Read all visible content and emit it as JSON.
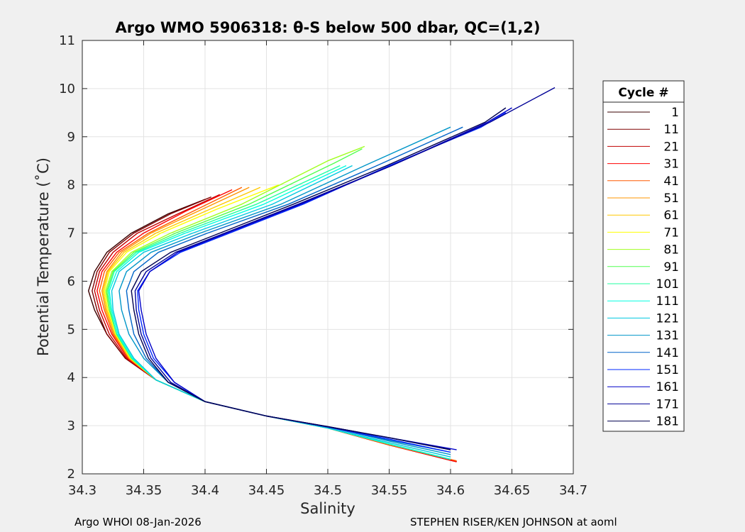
{
  "chart_data": {
    "type": "line",
    "title": "Argo WMO 5906318: θ-S below 500 dbar,  QC=(1,2)",
    "xlabel": "Salinity",
    "ylabel": "Potential Temperature (˚C)",
    "xlim": [
      34.3,
      34.7
    ],
    "ylim": [
      2,
      11
    ],
    "xticks": [
      "34.3",
      "34.35",
      "34.4",
      "34.45",
      "34.5",
      "34.55",
      "34.6",
      "34.65",
      "34.7"
    ],
    "yticks": [
      "2",
      "3",
      "4",
      "5",
      "6",
      "7",
      "8",
      "9",
      "10",
      "11"
    ],
    "grid": true,
    "legend_title": "Cycle #",
    "legend_position": "right",
    "series": [
      {
        "name": "1",
        "color": "#3a0000",
        "x": [
          34.605,
          34.55,
          34.5,
          34.45,
          34.4,
          34.36,
          34.335,
          34.32,
          34.31,
          34.305,
          34.31,
          34.32,
          34.34,
          34.37,
          34.4
        ],
        "y": [
          2.25,
          2.6,
          2.95,
          3.2,
          3.5,
          3.95,
          4.4,
          4.9,
          5.4,
          5.8,
          6.2,
          6.6,
          7.0,
          7.4,
          7.7
        ]
      },
      {
        "name": "11",
        "color": "#800000",
        "x": [
          34.605,
          34.55,
          34.5,
          34.45,
          34.4,
          34.36,
          34.335,
          34.32,
          34.312,
          34.308,
          34.312,
          34.322,
          34.342,
          34.372,
          34.405
        ],
        "y": [
          2.25,
          2.6,
          2.95,
          3.2,
          3.5,
          3.95,
          4.4,
          4.9,
          5.4,
          5.8,
          6.2,
          6.6,
          7.0,
          7.4,
          7.75
        ]
      },
      {
        "name": "21",
        "color": "#c00000",
        "x": [
          34.605,
          34.55,
          34.5,
          34.45,
          34.4,
          34.36,
          34.336,
          34.322,
          34.314,
          34.31,
          34.314,
          34.325,
          34.345,
          34.378,
          34.412
        ],
        "y": [
          2.25,
          2.6,
          2.95,
          3.2,
          3.5,
          3.95,
          4.4,
          4.9,
          5.4,
          5.8,
          6.2,
          6.6,
          7.0,
          7.4,
          7.8
        ]
      },
      {
        "name": "31",
        "color": "#ff0000",
        "x": [
          34.605,
          34.55,
          34.5,
          34.45,
          34.4,
          34.36,
          34.337,
          34.324,
          34.316,
          34.312,
          34.316,
          34.328,
          34.35,
          34.384,
          34.422
        ],
        "y": [
          2.25,
          2.6,
          2.95,
          3.2,
          3.5,
          3.95,
          4.4,
          4.9,
          5.4,
          5.8,
          6.2,
          6.6,
          7.0,
          7.45,
          7.9
        ]
      },
      {
        "name": "41",
        "color": "#ff5a00",
        "x": [
          34.605,
          34.55,
          34.5,
          34.45,
          34.4,
          34.36,
          34.338,
          34.325,
          34.318,
          34.314,
          34.318,
          34.33,
          34.354,
          34.39,
          34.43
        ],
        "y": [
          2.27,
          2.6,
          2.95,
          3.2,
          3.5,
          3.95,
          4.4,
          4.9,
          5.4,
          5.8,
          6.2,
          6.6,
          7.0,
          7.45,
          7.95
        ]
      },
      {
        "name": "51",
        "color": "#ff9600",
        "x": [
          34.6,
          34.55,
          34.5,
          34.45,
          34.4,
          34.36,
          34.338,
          34.326,
          34.319,
          34.316,
          34.32,
          34.332,
          34.356,
          34.394,
          34.436
        ],
        "y": [
          2.3,
          2.62,
          2.95,
          3.2,
          3.5,
          3.95,
          4.4,
          4.9,
          5.4,
          5.8,
          6.2,
          6.6,
          7.0,
          7.45,
          7.95
        ]
      },
      {
        "name": "61",
        "color": "#ffc800",
        "x": [
          34.6,
          34.55,
          34.5,
          34.45,
          34.4,
          34.36,
          34.339,
          34.327,
          34.32,
          34.317,
          34.321,
          34.334,
          34.36,
          34.4,
          34.445
        ],
        "y": [
          2.3,
          2.62,
          2.95,
          3.2,
          3.5,
          3.95,
          4.4,
          4.9,
          5.4,
          5.8,
          6.2,
          6.6,
          7.0,
          7.45,
          7.95
        ]
      },
      {
        "name": "71",
        "color": "#ffff00",
        "x": [
          34.6,
          34.55,
          34.5,
          34.45,
          34.4,
          34.36,
          34.339,
          34.327,
          34.321,
          34.318,
          34.322,
          34.336,
          34.364,
          34.41,
          34.46
        ],
        "y": [
          2.3,
          2.62,
          2.95,
          3.2,
          3.5,
          3.95,
          4.4,
          4.9,
          5.4,
          5.8,
          6.2,
          6.6,
          7.0,
          7.5,
          8.0
        ]
      },
      {
        "name": "81",
        "color": "#a0ff20",
        "x": [
          34.6,
          34.55,
          34.5,
          34.45,
          34.4,
          34.36,
          34.34,
          34.328,
          34.322,
          34.319,
          34.324,
          34.34,
          34.372,
          34.43,
          34.5,
          34.53
        ],
        "y": [
          2.3,
          2.62,
          2.95,
          3.2,
          3.5,
          3.95,
          4.4,
          4.9,
          5.4,
          5.8,
          6.2,
          6.6,
          7.0,
          7.6,
          8.5,
          8.8
        ]
      },
      {
        "name": "91",
        "color": "#50ff50",
        "x": [
          34.6,
          34.55,
          34.5,
          34.45,
          34.4,
          34.36,
          34.34,
          34.328,
          34.322,
          34.32,
          34.325,
          34.342,
          34.376,
          34.436,
          34.505,
          34.528
        ],
        "y": [
          2.3,
          2.62,
          2.95,
          3.2,
          3.5,
          3.95,
          4.4,
          4.9,
          5.4,
          5.8,
          6.2,
          6.6,
          7.0,
          7.6,
          8.45,
          8.75
        ]
      },
      {
        "name": "101",
        "color": "#20ffa0",
        "x": [
          34.6,
          34.55,
          34.5,
          34.45,
          34.4,
          34.36,
          34.34,
          34.328,
          34.323,
          34.321,
          34.326,
          34.344,
          34.38,
          34.442,
          34.51
        ],
        "y": [
          2.3,
          2.62,
          2.95,
          3.2,
          3.5,
          3.95,
          4.4,
          4.9,
          5.4,
          5.8,
          6.2,
          6.6,
          7.0,
          7.6,
          8.4
        ]
      },
      {
        "name": "111",
        "color": "#00ffe0",
        "x": [
          34.6,
          34.55,
          34.5,
          34.45,
          34.4,
          34.36,
          34.341,
          34.329,
          34.324,
          34.322,
          34.328,
          34.346,
          34.384,
          34.448,
          34.515
        ],
        "y": [
          2.3,
          2.62,
          2.95,
          3.2,
          3.5,
          3.95,
          4.4,
          4.9,
          5.4,
          5.8,
          6.2,
          6.6,
          7.0,
          7.6,
          8.4
        ]
      },
      {
        "name": "121",
        "color": "#00c8e0",
        "x": [
          34.6,
          34.55,
          34.5,
          34.45,
          34.4,
          34.36,
          34.342,
          34.33,
          34.325,
          34.324,
          34.33,
          34.35,
          34.39,
          34.455,
          34.52
        ],
        "y": [
          2.35,
          2.65,
          2.95,
          3.2,
          3.5,
          3.95,
          4.4,
          4.9,
          5.4,
          5.8,
          6.2,
          6.6,
          7.0,
          7.6,
          8.4
        ]
      },
      {
        "name": "131",
        "color": "#0096c8",
        "x": [
          34.6,
          34.55,
          34.5,
          34.45,
          34.4,
          34.37,
          34.35,
          34.338,
          34.332,
          34.33,
          34.336,
          34.356,
          34.396,
          34.462,
          34.53,
          34.6
        ],
        "y": [
          2.4,
          2.68,
          2.97,
          3.2,
          3.5,
          3.9,
          4.4,
          4.9,
          5.4,
          5.8,
          6.2,
          6.6,
          7.0,
          7.6,
          8.4,
          9.2
        ]
      },
      {
        "name": "141",
        "color": "#0064c8",
        "x": [
          34.6,
          34.55,
          34.5,
          34.45,
          34.4,
          34.37,
          34.352,
          34.342,
          34.338,
          34.336,
          34.342,
          34.362,
          34.402,
          34.468,
          34.54,
          34.61
        ],
        "y": [
          2.45,
          2.7,
          2.97,
          3.2,
          3.5,
          3.9,
          4.4,
          4.9,
          5.4,
          5.8,
          6.2,
          6.6,
          7.0,
          7.6,
          8.4,
          9.2
        ]
      },
      {
        "name": "151",
        "color": "#0028ff",
        "x": [
          34.6,
          34.55,
          34.5,
          34.45,
          34.4,
          34.375,
          34.358,
          34.35,
          34.346,
          34.345,
          34.355,
          34.38,
          34.42,
          34.48,
          34.55,
          34.625,
          34.645
        ],
        "y": [
          2.45,
          2.72,
          2.97,
          3.2,
          3.5,
          3.9,
          4.4,
          4.9,
          5.4,
          5.8,
          6.2,
          6.6,
          7.0,
          7.6,
          8.4,
          9.2,
          9.5
        ]
      },
      {
        "name": "161",
        "color": "#0000c8",
        "x": [
          34.605,
          34.55,
          34.5,
          34.45,
          34.4,
          34.375,
          34.36,
          34.352,
          34.348,
          34.346,
          34.355,
          34.378,
          34.418,
          34.478,
          34.552,
          34.63,
          34.65
        ],
        "y": [
          2.5,
          2.75,
          2.98,
          3.2,
          3.5,
          3.9,
          4.4,
          4.9,
          5.4,
          5.8,
          6.2,
          6.6,
          7.0,
          7.6,
          8.4,
          9.3,
          9.6
        ]
      },
      {
        "name": "171",
        "color": "#000096",
        "x": [
          34.6,
          34.55,
          34.5,
          34.45,
          34.4,
          34.372,
          34.356,
          34.348,
          34.344,
          34.343,
          34.352,
          34.376,
          34.416,
          34.476,
          34.552,
          34.632,
          34.685
        ],
        "y": [
          2.5,
          2.75,
          2.98,
          3.2,
          3.5,
          3.9,
          4.4,
          4.9,
          5.4,
          5.8,
          6.2,
          6.6,
          7.0,
          7.6,
          8.4,
          9.3,
          10.02
        ]
      },
      {
        "name": "181",
        "color": "#000050",
        "x": [
          34.6,
          34.55,
          34.5,
          34.45,
          34.4,
          34.37,
          34.354,
          34.346,
          34.342,
          34.34,
          34.348,
          34.372,
          34.412,
          34.472,
          34.548,
          34.628,
          34.645
        ],
        "y": [
          2.5,
          2.75,
          2.98,
          3.2,
          3.5,
          3.9,
          4.4,
          4.9,
          5.4,
          5.8,
          6.2,
          6.6,
          7.0,
          7.6,
          8.4,
          9.3,
          9.6
        ]
      }
    ]
  },
  "footer": {
    "left": "Argo WHOI 08-Jan-2026",
    "right": "STEPHEN RISER/KEN JOHNSON at aoml"
  }
}
